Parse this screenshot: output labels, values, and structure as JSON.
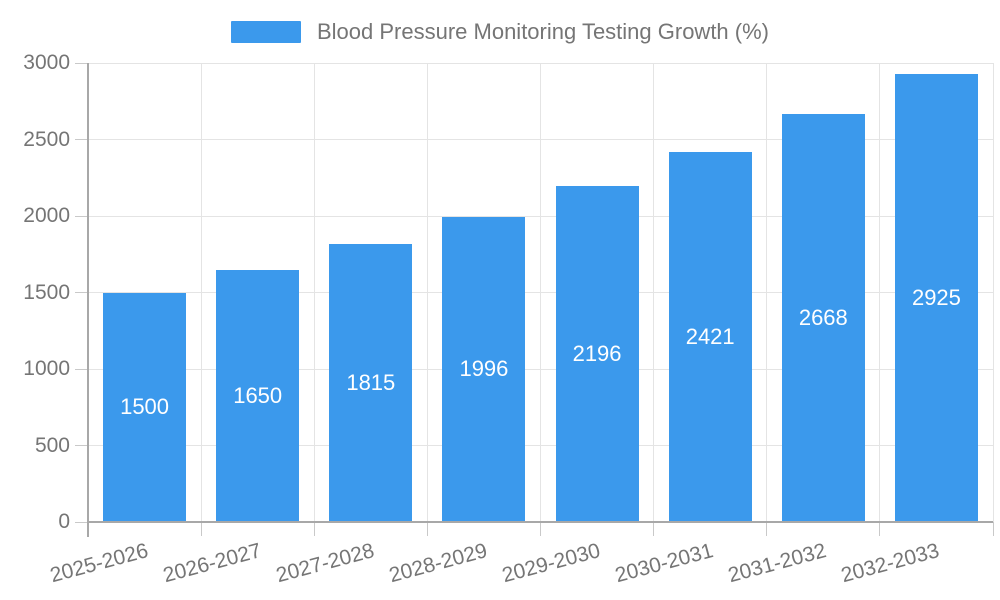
{
  "legend": {
    "label": "Blood Pressure Monitoring Testing Growth (%)"
  },
  "colors": {
    "bar": "#3B99EC",
    "grid": "#E4E4E4",
    "axis": "#A8A8A8",
    "tick": "#C9C9C9",
    "label_text": "#757575",
    "value_text": "#FFFFFF",
    "background": "#FFFFFF"
  },
  "chart_data": {
    "type": "bar",
    "title": "Blood Pressure Monitoring Testing Growth (%)",
    "categories": [
      "2025-2026",
      "2026-2027",
      "2027-2028",
      "2028-2029",
      "2029-2030",
      "2030-2031",
      "2031-2032",
      "2032-2033"
    ],
    "values": [
      1500,
      1650,
      1815,
      1996,
      2196,
      2421,
      2668,
      2925
    ],
    "xlabel": "",
    "ylabel": "",
    "ylim": [
      0,
      3000
    ],
    "yticks": [
      0,
      500,
      1000,
      1500,
      2000,
      2500,
      3000
    ],
    "grid": true,
    "legend_position": "top",
    "x_label_rotation_deg": -15,
    "bar_value_labels": "inside-center"
  }
}
